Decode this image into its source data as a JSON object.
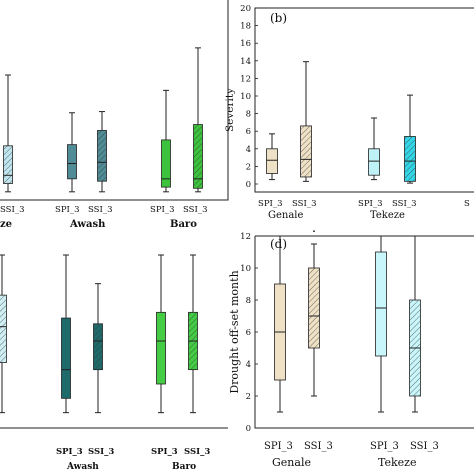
{
  "chart_data": [
    {
      "panel": "a",
      "type": "box",
      "title": "",
      "ylabel": "",
      "categories": [
        "SPI_3",
        "SSI_3",
        "SPI_3",
        "SSI_3",
        "SPI_3",
        "SSI_3",
        "SPI_3",
        "SSI_3"
      ],
      "basins": [
        "",
        "Awash",
        "Baro"
      ],
      "basin_partial_prefix": "ze",
      "ylim": [
        0,
        20
      ],
      "boxes": [
        {
          "basin": "Tekeze",
          "index": "SSI_3",
          "min": 0.1,
          "q1": 0.8,
          "median": 1.5,
          "q3": 4.0,
          "max": 10.0,
          "color": "#bfe6ef",
          "hatch": true
        },
        {
          "basin": "Awash",
          "index": "SPI_3",
          "min": 0.1,
          "q1": 1.2,
          "median": 2.5,
          "q3": 4.1,
          "max": 6.8,
          "color": "#4f8c96",
          "hatch": false
        },
        {
          "basin": "Awash",
          "index": "SSI_3",
          "min": 0.1,
          "q1": 1.0,
          "median": 2.6,
          "q3": 5.3,
          "max": 6.9,
          "color": "#4f8c96",
          "hatch": true
        },
        {
          "basin": "Baro",
          "index": "SPI_3",
          "min": 0.1,
          "q1": 0.5,
          "median": 1.2,
          "q3": 4.5,
          "max": 8.7,
          "color": "#3cc23c",
          "hatch": false
        },
        {
          "basin": "Baro",
          "index": "SSI_3",
          "min": 0.1,
          "q1": 0.4,
          "median": 1.2,
          "q3": 5.8,
          "max": 12.3,
          "color": "#3cc23c",
          "hatch": true
        }
      ]
    },
    {
      "panel": "b",
      "type": "box",
      "title": "(b)",
      "ylabel": "Severity",
      "ylim": [
        0,
        20
      ],
      "yticks": [
        0,
        2,
        4,
        6,
        8,
        10,
        12,
        14,
        16,
        18,
        20
      ],
      "categories": [
        "SPI_3",
        "SSI_3",
        "SPI_3",
        "SSI_3"
      ],
      "basins": [
        "Genale",
        "Tekeze"
      ],
      "partial_right_label": "S",
      "boxes": [
        {
          "basin": "Genale",
          "index": "SPI_3",
          "min": 0.5,
          "q1": 1.2,
          "median": 2.7,
          "q3": 4.0,
          "max": 5.7,
          "color": "#efe1c6",
          "hatch": false
        },
        {
          "basin": "Genale",
          "index": "SSI_3",
          "min": 0.3,
          "q1": 0.8,
          "median": 2.8,
          "q3": 6.6,
          "max": 13.9,
          "color": "#efe1c6",
          "hatch": true
        },
        {
          "basin": "Tekeze",
          "index": "SPI_3",
          "min": 0.5,
          "q1": 1.0,
          "median": 2.6,
          "q3": 4.0,
          "max": 7.5,
          "color": "#bff2f7",
          "hatch": false
        },
        {
          "basin": "Tekeze",
          "index": "SSI_3",
          "min": 0.1,
          "q1": 0.3,
          "median": 2.6,
          "q3": 5.4,
          "max": 10.1,
          "color": "#33d6e6",
          "hatch": true
        }
      ]
    },
    {
      "panel": "c",
      "type": "box",
      "title": "",
      "ylabel": "",
      "ylim": [
        0,
        12
      ],
      "categories": [
        "SPI_3",
        "SSI_3",
        "SPI_3",
        "SSI_3"
      ],
      "basins": [
        "Awash",
        "Baro"
      ],
      "boxes": [
        {
          "basin": "Tekeze",
          "index": "SSI_3",
          "min": 1,
          "q1": 4.5,
          "median": 7.0,
          "q3": 9.2,
          "max": 12,
          "color": "#cfeff5",
          "hatch": true
        },
        {
          "basin": "Awash",
          "index": "SPI_3",
          "min": 1,
          "q1": 2.0,
          "median": 4.0,
          "q3": 7.6,
          "max": 12,
          "color": "#1f6a6a",
          "hatch": false
        },
        {
          "basin": "Awash",
          "index": "SSI_3",
          "min": 1,
          "q1": 4.0,
          "median": 6.0,
          "q3": 7.2,
          "max": 10,
          "color": "#1f6a6a",
          "hatch": true
        },
        {
          "basin": "Baro",
          "index": "SPI_3",
          "min": 1,
          "q1": 3.0,
          "median": 6.0,
          "q3": 8.0,
          "max": 12,
          "color": "#44cc44",
          "hatch": false
        },
        {
          "basin": "Baro",
          "index": "SSI_3",
          "min": 1,
          "q1": 4.0,
          "median": 6.0,
          "q3": 8.0,
          "max": 12,
          "color": "#44cc44",
          "hatch": true
        }
      ]
    },
    {
      "panel": "d",
      "type": "box",
      "title": "(d)",
      "ylabel": "Drought off-set month",
      "ylim": [
        0,
        12.5
      ],
      "yticks": [
        0,
        2,
        4,
        6,
        8,
        10,
        12
      ],
      "categories": [
        "SPI_3",
        "SSI_3",
        "SPI_3",
        "SSI_3"
      ],
      "basins": [
        "Genale",
        "Tekeze"
      ],
      "boxes": [
        {
          "basin": "Genale",
          "index": "SPI_3",
          "min": 1,
          "q1": 3.0,
          "median": 6.0,
          "q3": 9.0,
          "max": 12,
          "color": "#efe1c6",
          "hatch": false
        },
        {
          "basin": "Genale",
          "index": "SSI_3",
          "min": 2,
          "q1": 5.0,
          "median": 7.0,
          "q3": 10.0,
          "max": 11.5,
          "color": "#efe1c6",
          "hatch": true,
          "outlier": 12.3
        },
        {
          "basin": "Tekeze",
          "index": "SPI_3",
          "min": 1,
          "q1": 4.5,
          "median": 7.5,
          "q3": 11.0,
          "max": 12,
          "color": "#c8f6fa",
          "hatch": false
        },
        {
          "basin": "Tekeze",
          "index": "SSI_3",
          "min": 1,
          "q1": 2.0,
          "median": 5.0,
          "q3": 8.0,
          "max": 12,
          "color": "#c8f6fa",
          "hatch": true
        }
      ]
    }
  ]
}
